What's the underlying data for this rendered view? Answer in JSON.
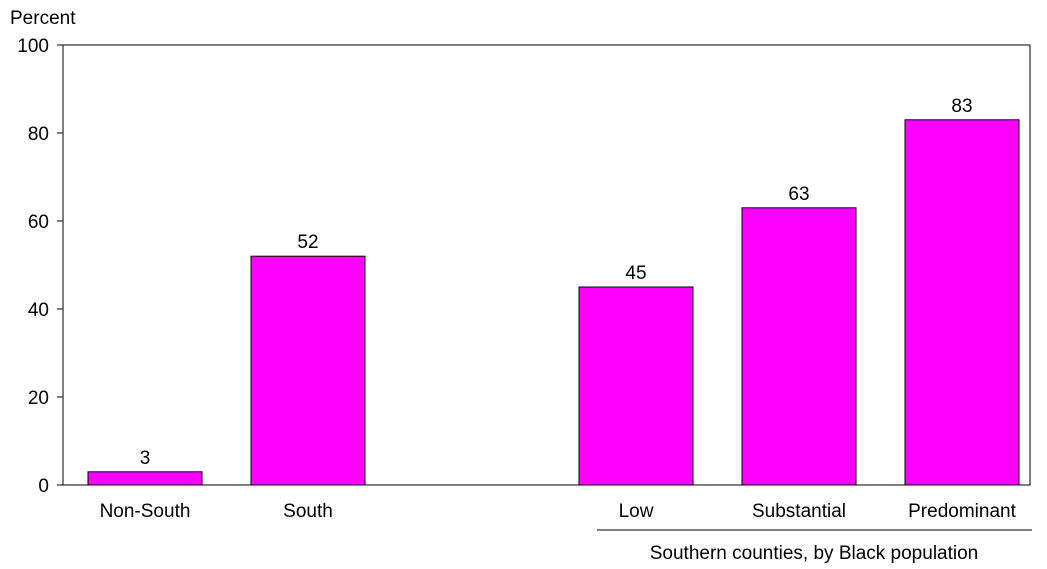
{
  "chart_data": {
    "type": "bar",
    "ylabel": "Percent",
    "xlabel": "",
    "ylim": [
      0,
      100
    ],
    "yticks": [
      0,
      20,
      40,
      60,
      80,
      100
    ],
    "grid": false,
    "categories": [
      "Non-South",
      "South",
      "Low",
      "Substantial",
      "Predominant"
    ],
    "values": [
      3,
      52,
      45,
      63,
      83
    ],
    "data_labels": [
      "3",
      "52",
      "45",
      "63",
      "83"
    ],
    "bar_color": "#FF00FF",
    "group_label": "Southern counties, by Black population",
    "group_members": [
      "Low",
      "Substantial",
      "Predominant"
    ]
  }
}
